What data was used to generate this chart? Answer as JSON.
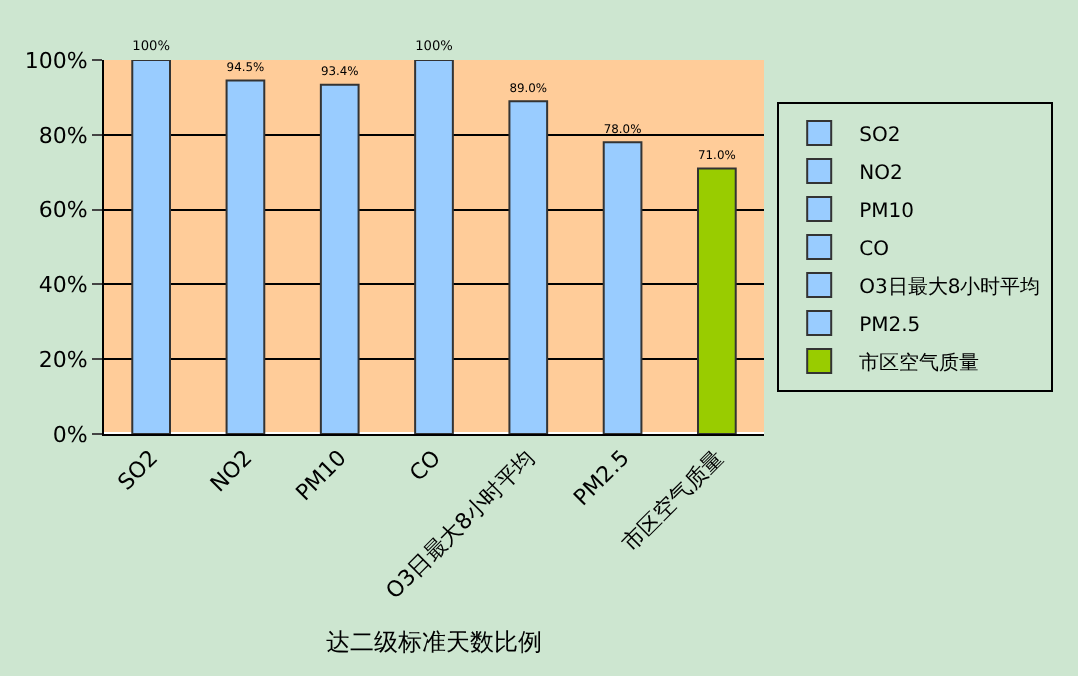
{
  "chart_data": {
    "type": "bar",
    "xlabel": "达二级标准天数比例",
    "categories": [
      "SO2",
      "NO2",
      "PM10",
      "CO",
      "O3日最大8小时平均",
      "PM2.5",
      "市区空气质量"
    ],
    "series": [
      {
        "name": "SO2",
        "color": "#99ccff",
        "values": [
          100,
          null,
          null,
          null,
          null,
          null,
          null
        ],
        "value_labels": [
          "100%",
          null,
          null,
          null,
          null,
          null,
          null
        ]
      },
      {
        "name": "NO2",
        "color": "#99ccff",
        "values": [
          null,
          94.5,
          null,
          null,
          null,
          null,
          null
        ],
        "value_labels": [
          null,
          "94.5%",
          null,
          null,
          null,
          null,
          null
        ]
      },
      {
        "name": "PM10",
        "color": "#99ccff",
        "values": [
          null,
          null,
          93.4,
          null,
          null,
          null,
          null
        ],
        "value_labels": [
          null,
          null,
          "93.4%",
          null,
          null,
          null,
          null
        ]
      },
      {
        "name": "CO",
        "color": "#99ccff",
        "values": [
          null,
          null,
          null,
          100,
          null,
          null,
          null
        ],
        "value_labels": [
          null,
          null,
          null,
          "100%",
          null,
          null,
          null
        ]
      },
      {
        "name": "O3日最大8小时平均",
        "color": "#99ccff",
        "values": [
          null,
          null,
          null,
          null,
          89.0,
          null,
          null
        ],
        "value_labels": [
          null,
          null,
          null,
          null,
          "89.0%",
          null,
          null
        ]
      },
      {
        "name": "PM2.5",
        "color": "#99ccff",
        "values": [
          null,
          null,
          null,
          null,
          null,
          78.0,
          null
        ],
        "value_labels": [
          null,
          null,
          null,
          null,
          null,
          "78.0%",
          null
        ]
      },
      {
        "name": "市区空气质量",
        "color": "#99cc00",
        "values": [
          null,
          null,
          null,
          null,
          null,
          null,
          71.0
        ],
        "value_labels": [
          null,
          null,
          null,
          null,
          null,
          null,
          "71.0%"
        ]
      }
    ],
    "ylim": [
      0,
      100
    ],
    "yticks": [
      {
        "value": 0,
        "label": "0%"
      },
      {
        "value": 20,
        "label": "20%"
      },
      {
        "value": 40,
        "label": "40%"
      },
      {
        "value": 60,
        "label": "60%"
      },
      {
        "value": 80,
        "label": "80%"
      },
      {
        "value": 100,
        "label": "100%"
      }
    ],
    "grid": "y",
    "legend": "right"
  }
}
